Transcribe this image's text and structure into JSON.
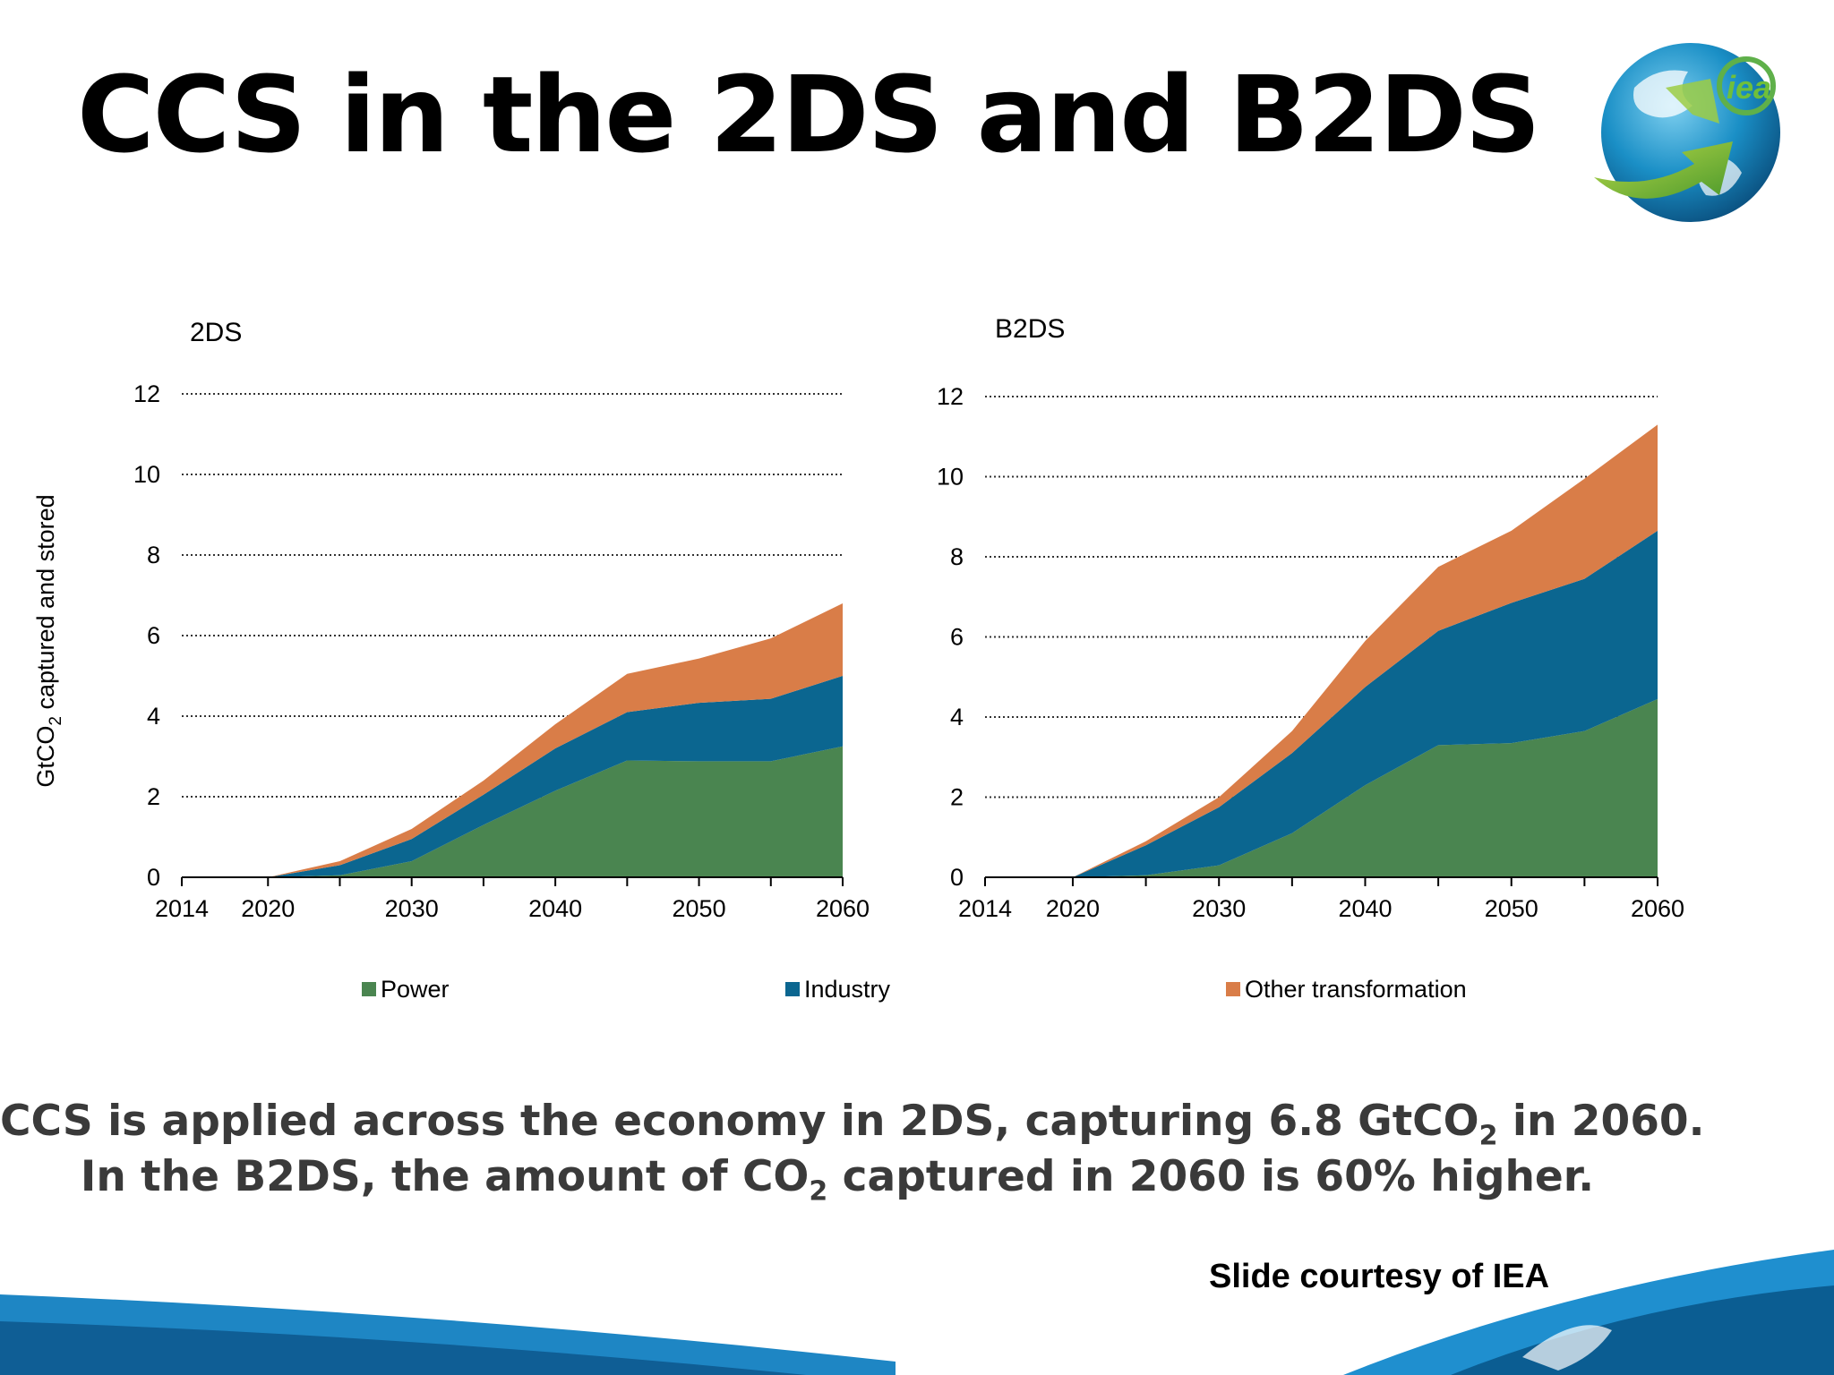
{
  "slide": {
    "title": "CCS in the 2DS and B2DS",
    "caption_line1": {
      "pre": "CCS is applied across the economy in 2DS, capturing 6.8 GtCO",
      "sub": "2",
      "post": " in 2060."
    },
    "caption_line2": {
      "pre": "In the B2DS, the amount of CO",
      "sub": "2",
      "post": " captured in 2060 is 60% higher."
    },
    "credit": "Slide courtesy of IEA",
    "logo_text": "iea"
  },
  "colors": {
    "Power": "#4a8550",
    "Industry": "#0b6690",
    "Other transformation": "#d97d48",
    "gridline": "#333333"
  },
  "chart_data": [
    {
      "type": "area",
      "stacked": true,
      "title": "2DS",
      "ylabel": {
        "pre": "GtCO",
        "sub": "2",
        "post": " captured and stored"
      },
      "ylim": [
        0,
        12
      ],
      "yticks": [
        0,
        2,
        4,
        6,
        8,
        10,
        12
      ],
      "xlim": [
        2014,
        2060
      ],
      "xticks": [
        2014,
        2020,
        2030,
        2040,
        2050,
        2060
      ],
      "grid": "horizontal dotted",
      "x": [
        2014,
        2020,
        2025,
        2030,
        2035,
        2040,
        2045,
        2050,
        2055,
        2060
      ],
      "series": [
        {
          "name": "Power",
          "values": [
            0,
            0,
            0.05,
            0.4,
            1.3,
            2.15,
            2.9,
            2.88,
            2.88,
            3.25
          ]
        },
        {
          "name": "Industry",
          "values": [
            0,
            0,
            0.25,
            0.55,
            0.75,
            1.05,
            1.2,
            1.45,
            1.55,
            1.75
          ]
        },
        {
          "name": "Other transformation",
          "values": [
            0,
            0,
            0.1,
            0.25,
            0.35,
            0.6,
            0.95,
            1.1,
            1.5,
            1.8
          ]
        }
      ]
    },
    {
      "type": "area",
      "stacked": true,
      "title": "B2DS",
      "ylim": [
        0,
        12
      ],
      "yticks": [
        0,
        2,
        4,
        6,
        8,
        10,
        12
      ],
      "xlim": [
        2014,
        2060
      ],
      "xticks": [
        2014,
        2020,
        2030,
        2040,
        2050,
        2060
      ],
      "grid": "horizontal dotted",
      "x": [
        2014,
        2020,
        2025,
        2030,
        2035,
        2040,
        2045,
        2050,
        2055,
        2060
      ],
      "series": [
        {
          "name": "Power",
          "values": [
            0,
            0,
            0.05,
            0.3,
            1.1,
            2.3,
            3.3,
            3.35,
            3.65,
            4.45
          ]
        },
        {
          "name": "Industry",
          "values": [
            0,
            0,
            0.75,
            1.45,
            2.0,
            2.45,
            2.85,
            3.5,
            3.8,
            4.2
          ]
        },
        {
          "name": "Other transformation",
          "values": [
            0,
            0,
            0.1,
            0.25,
            0.55,
            1.15,
            1.6,
            1.8,
            2.5,
            2.65
          ]
        }
      ]
    }
  ],
  "legend": {
    "position": "bottom",
    "items": [
      "Power",
      "Industry",
      "Other transformation"
    ]
  }
}
